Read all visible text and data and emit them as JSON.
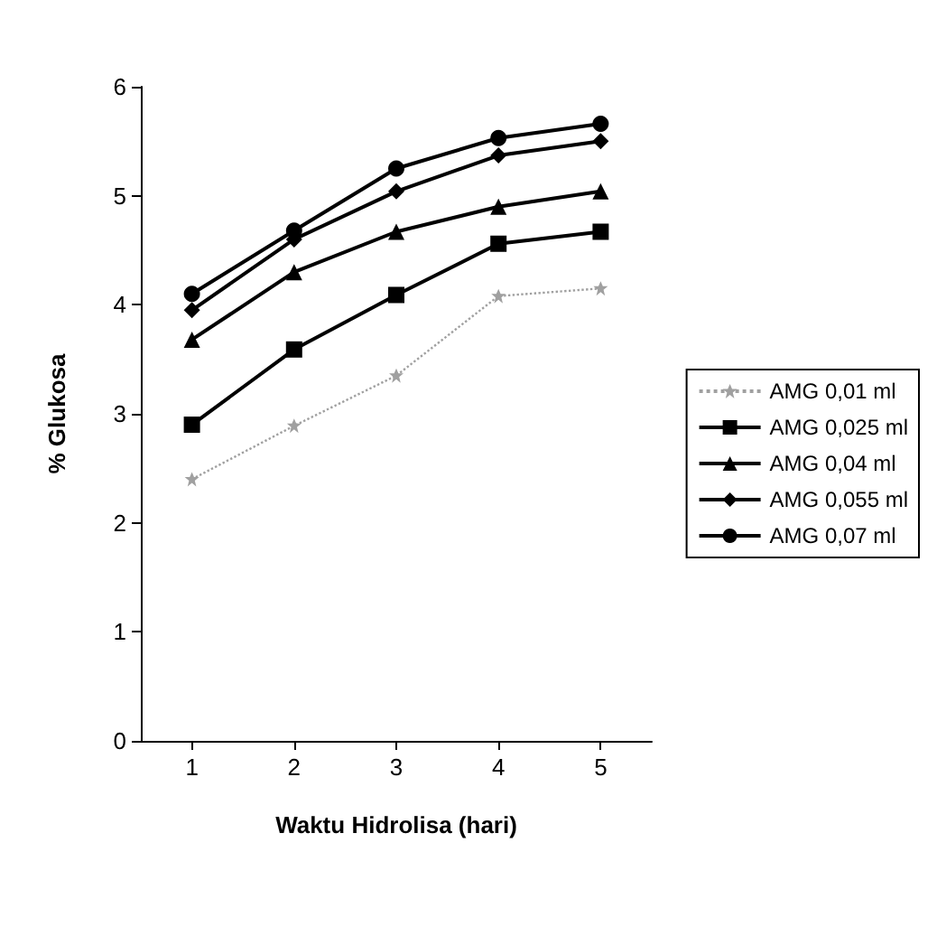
{
  "chart_data": {
    "type": "line",
    "xlabel": "Waktu Hidrolisa (hari)",
    "ylabel": "% Glukosa",
    "categories": [
      "1",
      "2",
      "3",
      "4",
      "5"
    ],
    "ylim": [
      0,
      6
    ],
    "yticks": [
      0,
      1,
      2,
      3,
      4,
      5,
      6
    ],
    "grid": false,
    "legend": "right",
    "series": [
      {
        "name": "AMG 0,01 ml",
        "color": "#a0a0a0",
        "marker": "star",
        "line_style": "dotted",
        "values": [
          2.4,
          2.89,
          3.35,
          4.08,
          4.15
        ]
      },
      {
        "name": "AMG 0,025 ml",
        "color": "#000000",
        "marker": "square",
        "line_style": "solid",
        "values": [
          2.9,
          3.59,
          4.09,
          4.56,
          4.67
        ]
      },
      {
        "name": "AMG 0,04 ml",
        "color": "#000000",
        "marker": "triangle",
        "line_style": "solid",
        "values": [
          3.68,
          4.3,
          4.67,
          4.9,
          5.04
        ]
      },
      {
        "name": "AMG 0,055 ml",
        "color": "#000000",
        "marker": "diamond",
        "line_style": "solid",
        "values": [
          3.95,
          4.6,
          5.04,
          5.37,
          5.5
        ]
      },
      {
        "name": "AMG 0,07 ml",
        "color": "#000000",
        "marker": "circle",
        "line_style": "solid",
        "values": [
          4.1,
          4.68,
          5.25,
          5.53,
          5.66
        ]
      }
    ]
  }
}
